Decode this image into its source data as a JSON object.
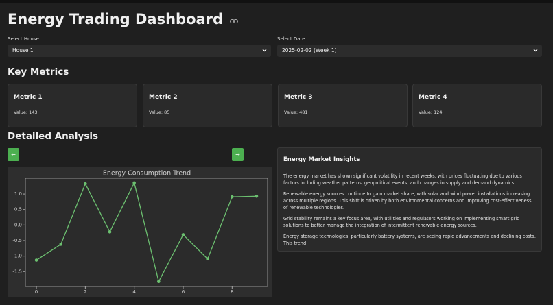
{
  "header": {
    "title": "Energy Trading Dashboard"
  },
  "filters": [
    {
      "label": "Select House",
      "value": "House 1"
    },
    {
      "label": "Select Date",
      "value": "2025-02-02 (Week 1)"
    }
  ],
  "key_metrics": {
    "heading": "Key Metrics",
    "cards": [
      {
        "title": "Metric 1",
        "value": "Value: 143"
      },
      {
        "title": "Metric 2",
        "value": "Value: 85"
      },
      {
        "title": "Metric 3",
        "value": "Value: 481"
      },
      {
        "title": "Metric 4",
        "value": "Value: 124"
      }
    ]
  },
  "analysis": {
    "heading": "Detailed Analysis",
    "prev_button": "←",
    "next_button": "→"
  },
  "insights": {
    "title": "Energy Market Insights",
    "paragraphs": [
      "The energy market has shown significant volatility in recent weeks, with prices fluctuating due to various factors including weather patterns, geopolitical events, and changes in supply and demand dynamics.",
      "Renewable energy sources continue to gain market share, with solar and wind power installations increasing across multiple regions. This shift is driven by both environmental concerns and improving cost-effectiveness of renewable technologies.",
      "Grid stability remains a key focus area, with utilities and regulators working on implementing smart grid solutions to better manage the integration of intermittent renewable energy sources.",
      "Energy storage technologies, particularly battery systems, are seeing rapid advancements and declining costs. This trend"
    ]
  },
  "chart_data": {
    "type": "line",
    "title": "Energy Consumption Trend",
    "x": [
      0,
      1,
      2,
      3,
      4,
      5,
      6,
      7,
      8,
      9
    ],
    "values": [
      -1.13,
      -0.62,
      1.33,
      -0.22,
      1.36,
      -1.82,
      -0.31,
      -1.09,
      0.91,
      0.93
    ],
    "color": "#6cc070",
    "xlim": [
      -0.45,
      9.45
    ],
    "ylim": [
      -1.98,
      1.51
    ],
    "xticks": [
      0,
      2,
      4,
      6,
      8
    ],
    "yticks": [
      {
        "value": 1,
        "label": "1.0"
      },
      0.5,
      {
        "value": 0,
        "label": "0.0"
      },
      -0.5,
      {
        "value": -1,
        "label": "-1.0"
      },
      -1.5
    ]
  }
}
